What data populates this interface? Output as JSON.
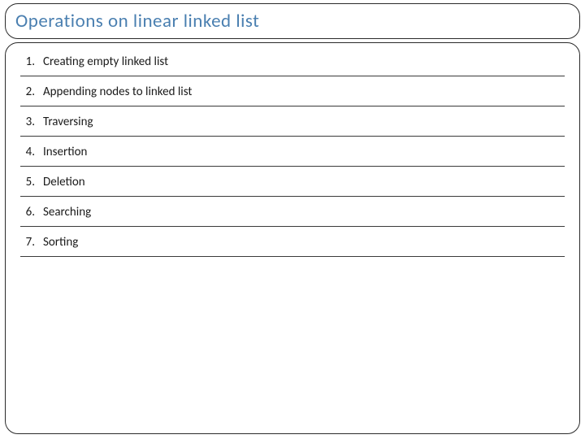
{
  "title": "Operations on linear linked list",
  "title_color": "#4a7fb0",
  "title_fontsize": 23,
  "border_color": "#2a2a2a",
  "border_radius": 16,
  "background_color": "#ffffff",
  "list_text_color": "#1a1a1a",
  "list_fontsize": 15,
  "divider_color": "#3a3a3a",
  "items": [
    {
      "num": "1.",
      "label": "Creating empty linked list"
    },
    {
      "num": "2.",
      "label": "Appending nodes to linked list"
    },
    {
      "num": "3.",
      "label": "Traversing"
    },
    {
      "num": "4.",
      "label": "Insertion"
    },
    {
      "num": "5.",
      "label": "Deletion"
    },
    {
      "num": "6.",
      "label": "Searching"
    },
    {
      "num": "7.",
      "label": "Sorting"
    }
  ]
}
